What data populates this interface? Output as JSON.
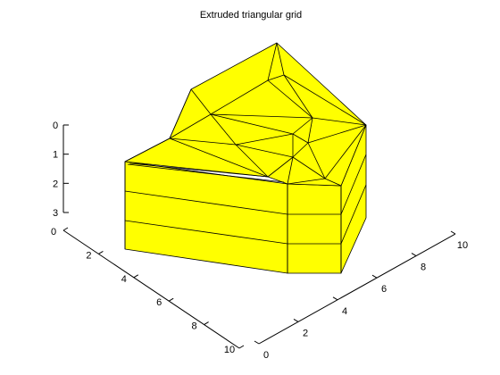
{
  "chart_data": {
    "type": "surface",
    "title": "Extruded triangular grid",
    "face_color": "#ffff00",
    "edge_color": "#000000",
    "background": "#ffffff",
    "view": "3d",
    "xlabel": "",
    "ylabel": "",
    "zlabel": "",
    "axes": {
      "x_ticks": [
        "0",
        "2",
        "4",
        "6",
        "8",
        "10"
      ],
      "y_ticks": [
        "0",
        "2",
        "4",
        "6",
        "8",
        "10"
      ],
      "z_ticks": [
        "0",
        "1",
        "2",
        "3"
      ],
      "xlim": [
        0,
        10
      ],
      "ylim": [
        0,
        10
      ],
      "zlim": [
        0,
        3
      ],
      "z_direction": "reversed"
    },
    "layers": 3,
    "grid": false
  }
}
